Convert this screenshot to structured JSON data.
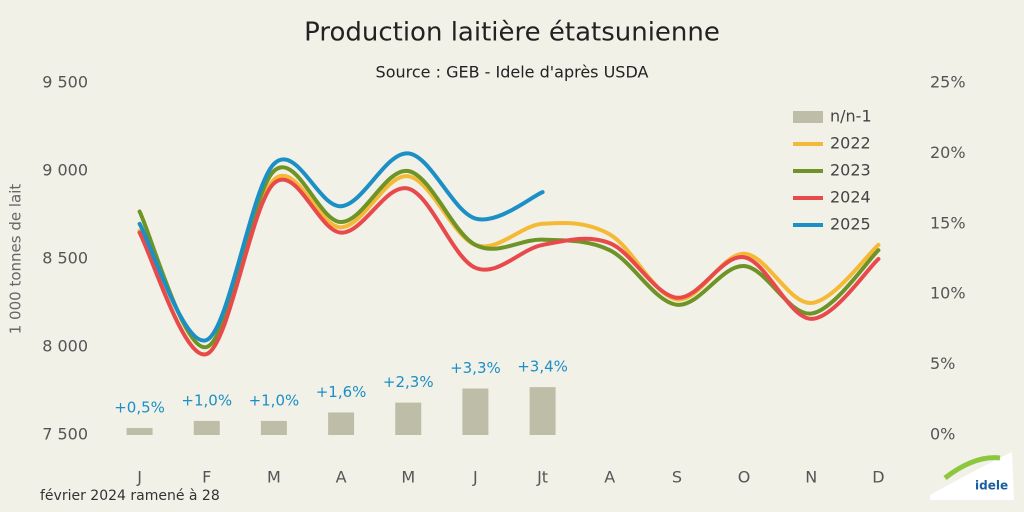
{
  "chart_data": {
    "type": "line",
    "title": "Production laitière étatsunienne",
    "subtitle": "Source : GEB - Idele d'après USDA",
    "y_label": "1 000 tonnes de lait",
    "footnote": "février 2024 ramené à 28",
    "logo": "idele",
    "categories": [
      "J",
      "F",
      "M",
      "A",
      "M",
      "J",
      "Jt",
      "A",
      "S",
      "O",
      "N",
      "D"
    ],
    "ylim": [
      7500,
      9500
    ],
    "yticks": [
      {
        "value": 7500,
        "label": "7 500"
      },
      {
        "value": 8000,
        "label": "8 000"
      },
      {
        "value": 8500,
        "label": "8 500"
      },
      {
        "value": 9000,
        "label": "9 000"
      },
      {
        "value": 9500,
        "label": "9 500"
      }
    ],
    "y2lim": [
      0,
      25
    ],
    "y2ticks": [
      {
        "value": 0,
        "label": "0%"
      },
      {
        "value": 5,
        "label": "5%"
      },
      {
        "value": 10,
        "label": "10%"
      },
      {
        "value": 15,
        "label": "15%"
      },
      {
        "value": 20,
        "label": "20%"
      },
      {
        "value": 25,
        "label": "25%"
      }
    ],
    "grid": false,
    "legend": "upper right",
    "series": [
      {
        "name": "n/n-1",
        "type": "bar",
        "axis": "y2",
        "color": "#bebea8",
        "values": [
          0.5,
          1.0,
          1.0,
          1.6,
          2.3,
          3.3,
          3.4,
          null,
          null,
          null,
          null,
          null
        ],
        "value_labels": [
          "+0,5%",
          "+1,0%",
          "+1,0%",
          "+1,6%",
          "+2,3%",
          "+3,3%",
          "+3,4%",
          null,
          null,
          null,
          null,
          null
        ]
      },
      {
        "name": "2022",
        "color": "#f5b935",
        "values": [
          8660,
          7960,
          8950,
          8680,
          8970,
          8580,
          8700,
          8640,
          8270,
          8530,
          8250,
          8580
        ]
      },
      {
        "name": "2023",
        "color": "#6e9428",
        "values": [
          8770,
          8000,
          9000,
          8710,
          9000,
          8580,
          8610,
          8550,
          8240,
          8460,
          8190,
          8550
        ]
      },
      {
        "name": "2024",
        "color": "#e84a4c",
        "values": [
          8650,
          7960,
          8930,
          8650,
          8900,
          8450,
          8580,
          8590,
          8280,
          8510,
          8160,
          8500
        ]
      },
      {
        "name": "2025",
        "color": "#1b8fc6",
        "values": [
          8700,
          8040,
          9040,
          8800,
          9100,
          8730,
          8880,
          null,
          null,
          null,
          null,
          null
        ]
      }
    ]
  }
}
